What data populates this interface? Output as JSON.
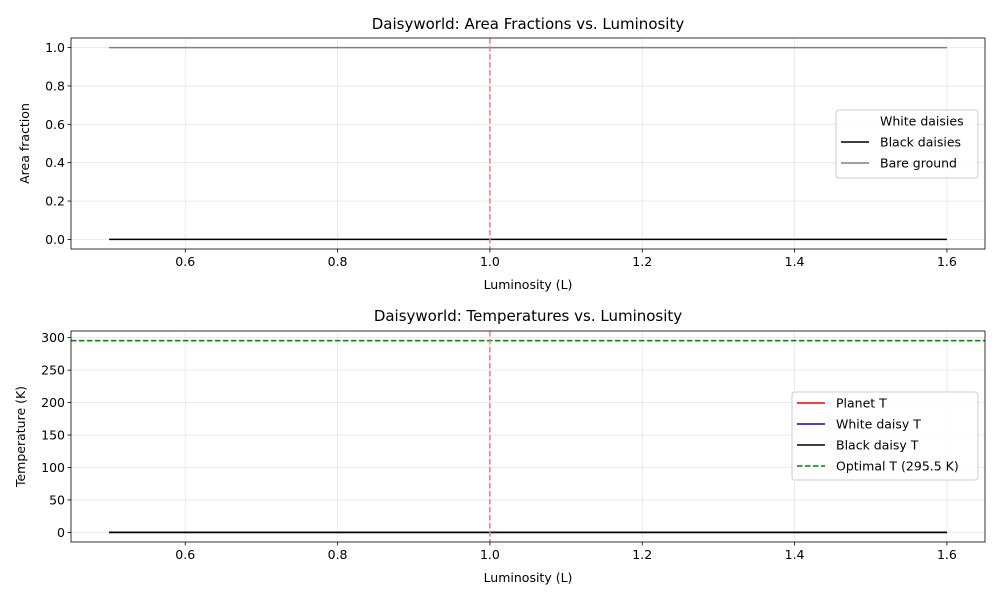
{
  "chart_data": [
    {
      "type": "line",
      "title": "Daisyworld: Area Fractions vs. Luminosity",
      "xlabel": "Luminosity (L)",
      "ylabel": "Area fraction",
      "xlim": [
        0.45,
        1.65
      ],
      "ylim": [
        -0.05,
        1.05
      ],
      "xticks": [
        0.6,
        0.8,
        1.0,
        1.2,
        1.4,
        1.6
      ],
      "xtick_labels": [
        "0.6",
        "0.8",
        "1.0",
        "1.2",
        "1.4",
        "1.6"
      ],
      "yticks": [
        0.0,
        0.2,
        0.4,
        0.6,
        0.8,
        1.0
      ],
      "ytick_labels": [
        "0.0",
        "0.2",
        "0.4",
        "0.6",
        "0.8",
        "1.0"
      ],
      "grid": true,
      "legend_position": "center-right",
      "series": [
        {
          "name": "White daisies",
          "color": "#ffffff",
          "style": "solid",
          "x": [
            0.5,
            1.6
          ],
          "y": [
            0.0,
            0.0
          ]
        },
        {
          "name": "Black daisies",
          "color": "#000000",
          "style": "solid",
          "x": [
            0.5,
            1.6
          ],
          "y": [
            0.0,
            0.0
          ]
        },
        {
          "name": "Bare ground",
          "color": "#808080",
          "style": "solid",
          "x": [
            0.5,
            1.6
          ],
          "y": [
            1.0,
            1.0
          ]
        }
      ],
      "vlines": [
        {
          "x": 1.0,
          "color": "#f08080",
          "style": "dashed"
        }
      ],
      "hlines": []
    },
    {
      "type": "line",
      "title": "Daisyworld: Temperatures vs. Luminosity",
      "xlabel": "Luminosity (L)",
      "ylabel": "Temperature (K)",
      "xlim": [
        0.45,
        1.65
      ],
      "ylim": [
        -14.775,
        310.275
      ],
      "xticks": [
        0.6,
        0.8,
        1.0,
        1.2,
        1.4,
        1.6
      ],
      "xtick_labels": [
        "0.6",
        "0.8",
        "1.0",
        "1.2",
        "1.4",
        "1.6"
      ],
      "yticks": [
        0,
        50,
        100,
        150,
        200,
        250,
        300
      ],
      "ytick_labels": [
        "0",
        "50",
        "100",
        "150",
        "200",
        "250",
        "300"
      ],
      "grid": true,
      "legend_position": "center-right",
      "series": [
        {
          "name": "Planet T",
          "color": "#ff0000",
          "style": "solid",
          "x": [
            0.5,
            1.6
          ],
          "y": [
            0,
            0
          ]
        },
        {
          "name": "White daisy T",
          "color": "#0000cc",
          "style": "solid",
          "x": [
            0.5,
            1.6
          ],
          "y": [
            0,
            0
          ]
        },
        {
          "name": "Black daisy T",
          "color": "#000000",
          "style": "solid",
          "x": [
            0.5,
            1.6
          ],
          "y": [
            0,
            0
          ]
        }
      ],
      "vlines": [
        {
          "x": 1.0,
          "color": "#f08080",
          "style": "dashed"
        }
      ],
      "hlines": [
        {
          "y": 295.5,
          "color": "#008000",
          "style": "dashed",
          "name": "Optimal T (295.5 K)"
        }
      ]
    }
  ]
}
